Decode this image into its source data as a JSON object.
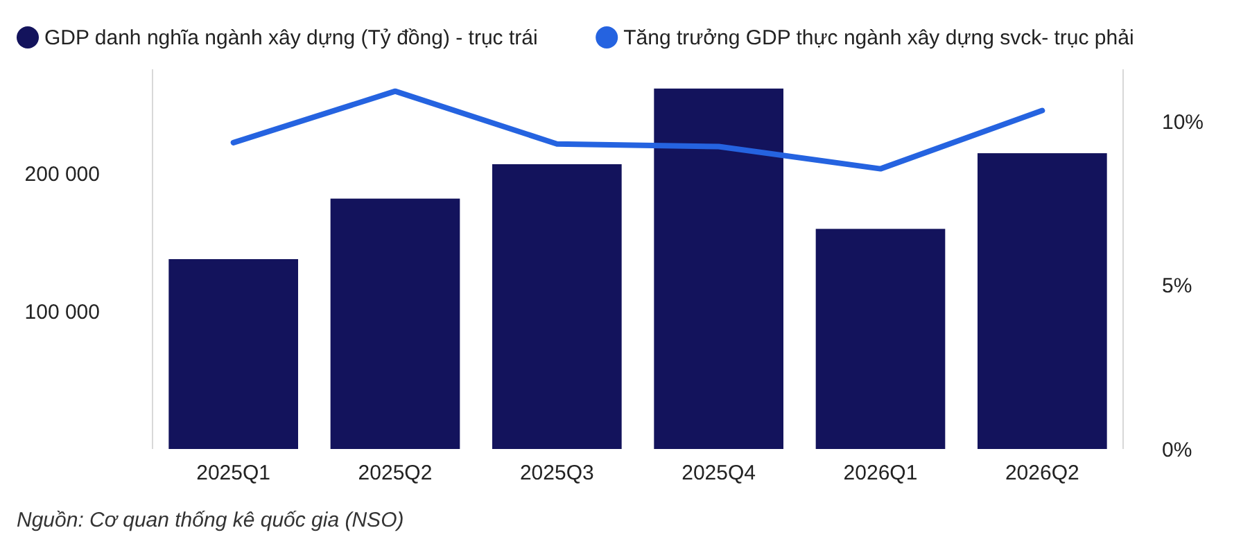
{
  "chart_data": {
    "type": "bar",
    "categories": [
      "2025Q1",
      "2025Q2",
      "2025Q3",
      "2025Q4",
      "2026Q1",
      "2026Q2"
    ],
    "series": [
      {
        "name": "GDP danh nghĩa ngành xây dựng (Tỷ đồng) - trục trái",
        "color": "#13135c",
        "values": [
          138000,
          182000,
          207000,
          262000,
          160000,
          215000
        ]
      },
      {
        "name": "Tăng trưởng GDP thực ngành xây dựng svck- trục phải",
        "type": "line",
        "axis": "y2",
        "color": "#2563e0",
        "values": [
          9.36,
          10.93,
          9.32,
          9.24,
          8.56,
          10.34
        ]
      }
    ],
    "ylim": [
      0,
      276000
    ],
    "yticks": [
      {
        "value": 100000,
        "label": "100 000"
      },
      {
        "value": 200000,
        "label": "200 000"
      }
    ],
    "y2lim": [
      0,
      11.6
    ],
    "y2ticks": [
      {
        "value": 0,
        "label": "0%"
      },
      {
        "value": 5,
        "label": "5%"
      },
      {
        "value": 10,
        "label": "10%"
      }
    ],
    "grid": false,
    "legend": "top left",
    "marker": "none",
    "annotations": [
      "Nguồn: Cơ quan thống kê quốc gia (NSO)"
    ]
  }
}
